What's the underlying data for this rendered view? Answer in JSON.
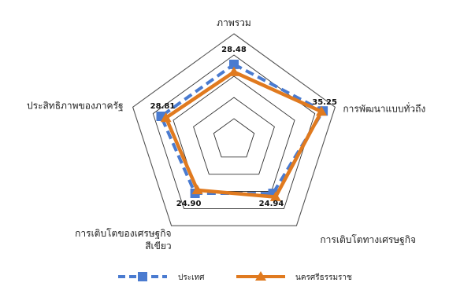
{
  "chart_data": {
    "type": "radar",
    "title": "",
    "categories": [
      "ภาพรวม",
      "การพัฒนาแบบทั่วถึง",
      "การเติบโตทางเศรษฐกิจ",
      "การเติบโตของเศรษฐกิจ สีเขียว",
      "ประสิทธิภาพของภาครัฐ"
    ],
    "category_lines": [
      [
        "ภาพรวม"
      ],
      [
        "การพัฒนาแบบทั่วถึง"
      ],
      [
        "การเติบโตทางเศรษฐกิจ"
      ],
      [
        "การเติบโตของเศรษฐกิจ",
        "สีเขียว"
      ],
      [
        "ประสิทธิภาพของภาครัฐ"
      ]
    ],
    "rmax": 40,
    "rings": [
      8,
      16,
      24,
      32,
      40
    ],
    "series": [
      {
        "name": "ประเทศ",
        "color": "#4a7bd0",
        "style": "dashed",
        "marker": "square",
        "values": [
          28.48,
          35.25,
          24.94,
          24.9,
          28.81
        ]
      },
      {
        "name": "นครศรีธรรมราช",
        "color": "#e07a1f",
        "style": "solid",
        "marker": "triangle",
        "values": [
          25.6,
          34.6,
          26.6,
          23.4,
          26.9
        ]
      }
    ],
    "data_labels": [
      "28.48",
      "35.25",
      "24.94",
      "24.90",
      "28.81"
    ],
    "legend": {
      "position": "bottom"
    },
    "grid": true
  }
}
